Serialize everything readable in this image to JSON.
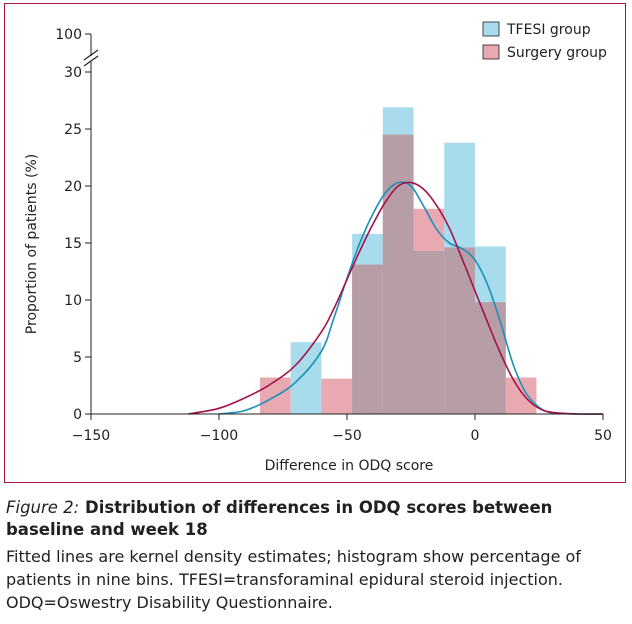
{
  "chart_data": {
    "type": "bar",
    "xlabel": "Difference in ODQ score",
    "ylabel": "Proportion of patients (%)",
    "xlim": [
      -150,
      50
    ],
    "ylim": [
      0,
      30
    ],
    "y_break_label": "100",
    "x_ticks": [
      -150,
      -100,
      -50,
      0,
      50
    ],
    "x_tick_labels": [
      "−150",
      "−100",
      "−50",
      "0",
      "50"
    ],
    "y_ticks": [
      0,
      5,
      10,
      15,
      20,
      25,
      30
    ],
    "y_tick_labels": [
      "0",
      "5",
      "10",
      "15",
      "20",
      "25",
      "30"
    ],
    "bin_edges": [
      -84,
      -72,
      -60,
      -48,
      -36,
      -24,
      -12,
      0,
      12,
      24
    ],
    "series": [
      {
        "name": "TFESI group",
        "color": "#a8dbec",
        "values": [
          0,
          6.3,
          0,
          15.8,
          26.9,
          14.3,
          23.8,
          14.7,
          0
        ]
      },
      {
        "name": "Surgery group",
        "color": "#e8aab0",
        "values": [
          3.2,
          0,
          3.1,
          13.1,
          24.5,
          18.0,
          14.6,
          9.8,
          3.2
        ]
      }
    ],
    "overlap_color": "#b69da6",
    "kde": [
      {
        "name": "TFESI group",
        "color": "#1a8fb8",
        "x": [
          -100,
          -90,
          -80,
          -70,
          -60,
          -55,
          -50,
          -45,
          -40,
          -35,
          -30,
          -25,
          -20,
          -15,
          -10,
          -5,
          0,
          5,
          10,
          15,
          20,
          25,
          30,
          40,
          50
        ],
        "y": [
          0,
          0.3,
          1.3,
          2.8,
          5.5,
          8.5,
          11.9,
          15.0,
          17.5,
          19.4,
          20.3,
          20.0,
          18.2,
          16.2,
          15.0,
          14.5,
          13.5,
          11.3,
          8.0,
          4.3,
          1.8,
          0.6,
          0.1,
          0,
          0
        ]
      },
      {
        "name": "Surgery group",
        "color": "#a4124a",
        "x": [
          -112,
          -100,
          -90,
          -80,
          -70,
          -60,
          -55,
          -50,
          -45,
          -40,
          -35,
          -30,
          -25,
          -20,
          -15,
          -10,
          -5,
          0,
          5,
          10,
          15,
          20,
          25,
          30,
          40,
          50
        ],
        "y": [
          0,
          0.5,
          1.4,
          2.6,
          4.3,
          7.2,
          9.3,
          11.8,
          14.3,
          16.6,
          18.6,
          20.0,
          20.3,
          19.7,
          18.3,
          16.3,
          13.6,
          10.8,
          8.0,
          5.3,
          3.0,
          1.4,
          0.5,
          0.15,
          0,
          0
        ]
      }
    ]
  },
  "caption": {
    "figure_label": "Figure 2:",
    "title": "Distribution of differences in ODQ scores between baseline and week 18",
    "body": "Fitted lines are kernel density estimates; histogram show percentage of patients in nine bins. TFESI=transforaminal epidural steroid injection. ODQ=Oswestry Disability Questionnaire."
  }
}
